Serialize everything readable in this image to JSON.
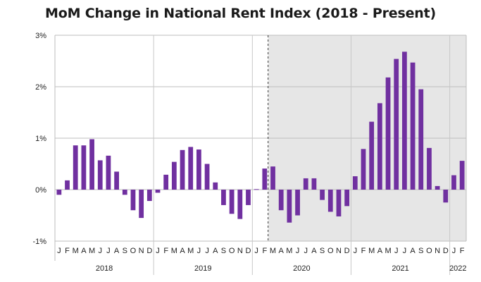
{
  "chart_data": {
    "type": "bar",
    "title": "MoM Change in National Rent Index (2018 - Present)",
    "xlabel": "",
    "ylabel": "",
    "ylim": [
      -1,
      3
    ],
    "yticks": [
      3,
      2,
      1,
      0,
      -1
    ],
    "ytick_labels": [
      "3%",
      "2%",
      "1%",
      "0%",
      "-1%"
    ],
    "grid": true,
    "bar_color": "#7030a0",
    "shade_color": "#e6e6e6",
    "shade_start_index": 26,
    "month_labels": [
      "J",
      "F",
      "M",
      "A",
      "M",
      "J",
      "J",
      "A",
      "S",
      "O",
      "N",
      "D",
      "J",
      "F",
      "M",
      "A",
      "M",
      "J",
      "J",
      "A",
      "S",
      "O",
      "N",
      "D",
      "J",
      "F",
      "M",
      "A",
      "M",
      "J",
      "J",
      "A",
      "S",
      "O",
      "N",
      "D",
      "J",
      "F",
      "M",
      "A",
      "M",
      "J",
      "J",
      "A",
      "S",
      "O",
      "N",
      "D",
      "J",
      "F"
    ],
    "years": [
      {
        "label": "2018",
        "start": 0,
        "count": 12
      },
      {
        "label": "2019",
        "start": 12,
        "count": 12
      },
      {
        "label": "2020",
        "start": 24,
        "count": 12
      },
      {
        "label": "2021",
        "start": 36,
        "count": 12
      },
      {
        "label": "2022",
        "start": 48,
        "count": 2
      }
    ],
    "values": [
      -0.1,
      0.18,
      0.86,
      0.86,
      0.98,
      0.57,
      0.66,
      0.35,
      -0.1,
      -0.4,
      -0.55,
      -0.22,
      -0.06,
      0.29,
      0.54,
      0.77,
      0.83,
      0.78,
      0.5,
      0.14,
      -0.3,
      -0.47,
      -0.57,
      -0.3,
      0.01,
      0.41,
      0.45,
      -0.4,
      -0.64,
      -0.5,
      0.22,
      0.22,
      -0.2,
      -0.43,
      -0.52,
      -0.32,
      0.26,
      0.79,
      1.32,
      1.68,
      2.18,
      2.54,
      2.68,
      2.47,
      1.95,
      0.81,
      0.07,
      -0.25,
      0.28,
      0.56
    ]
  }
}
